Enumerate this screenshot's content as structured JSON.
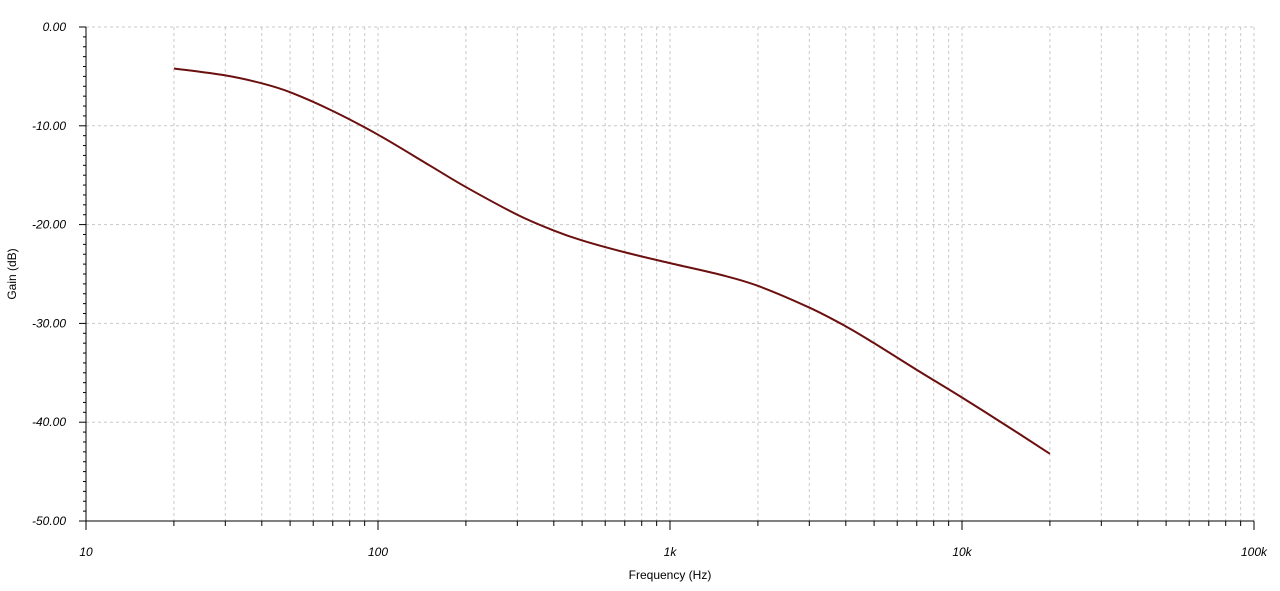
{
  "chart_data": {
    "type": "line",
    "xlabel": "Frequency (Hz)",
    "ylabel": "Gain (dB)",
    "xscale": "log",
    "xlim": [
      10,
      100000
    ],
    "ylim": [
      -50,
      0
    ],
    "grid": true,
    "x_tick_values": [
      10,
      100,
      1000,
      10000,
      100000
    ],
    "x_tick_labels": [
      "10",
      "100",
      "1k",
      "10k",
      "100k"
    ],
    "y_tick_values": [
      0,
      -10,
      -20,
      -30,
      -40,
      -50
    ],
    "y_tick_labels": [
      "0.00",
      "-10.00",
      "-20.00",
      "-30.00",
      "-40.00",
      "-50.00"
    ],
    "line_color": "#6b0f0f",
    "series": [
      {
        "x": [
          20,
          30,
          40,
          50,
          70,
          100,
          150,
          200,
          300,
          400,
          500,
          700,
          1000,
          1500,
          2000,
          3000,
          4000,
          5000,
          7000,
          10000,
          15000,
          20000
        ],
        "y": [
          -4.2,
          -4.9,
          -5.7,
          -6.6,
          -8.5,
          -10.9,
          -14.0,
          -16.2,
          -19.0,
          -20.6,
          -21.6,
          -22.8,
          -23.9,
          -25.1,
          -26.2,
          -28.4,
          -30.3,
          -32.0,
          -34.7,
          -37.5,
          -40.8,
          -43.2
        ]
      }
    ]
  }
}
